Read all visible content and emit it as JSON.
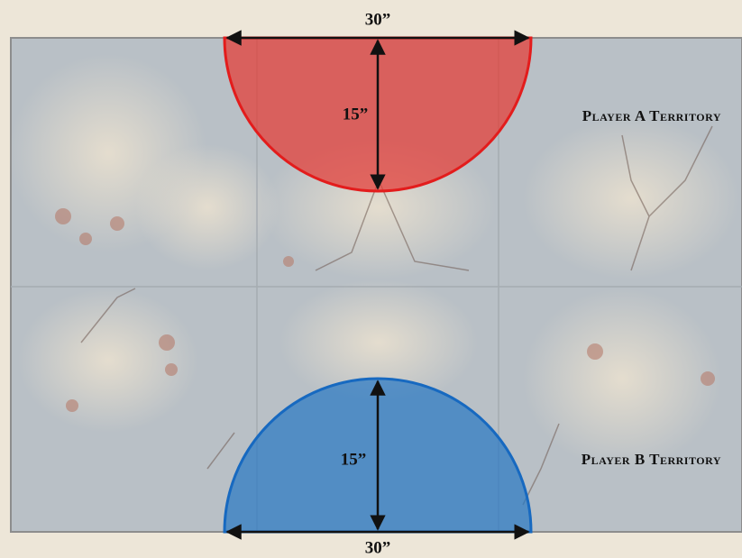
{
  "top_zone": {
    "width_label": "30”",
    "radius_label": "15”",
    "territory": "Player A Territory"
  },
  "bottom_zone": {
    "width_label": "30”",
    "radius_label": "15”",
    "territory": "Player B Territory"
  }
}
